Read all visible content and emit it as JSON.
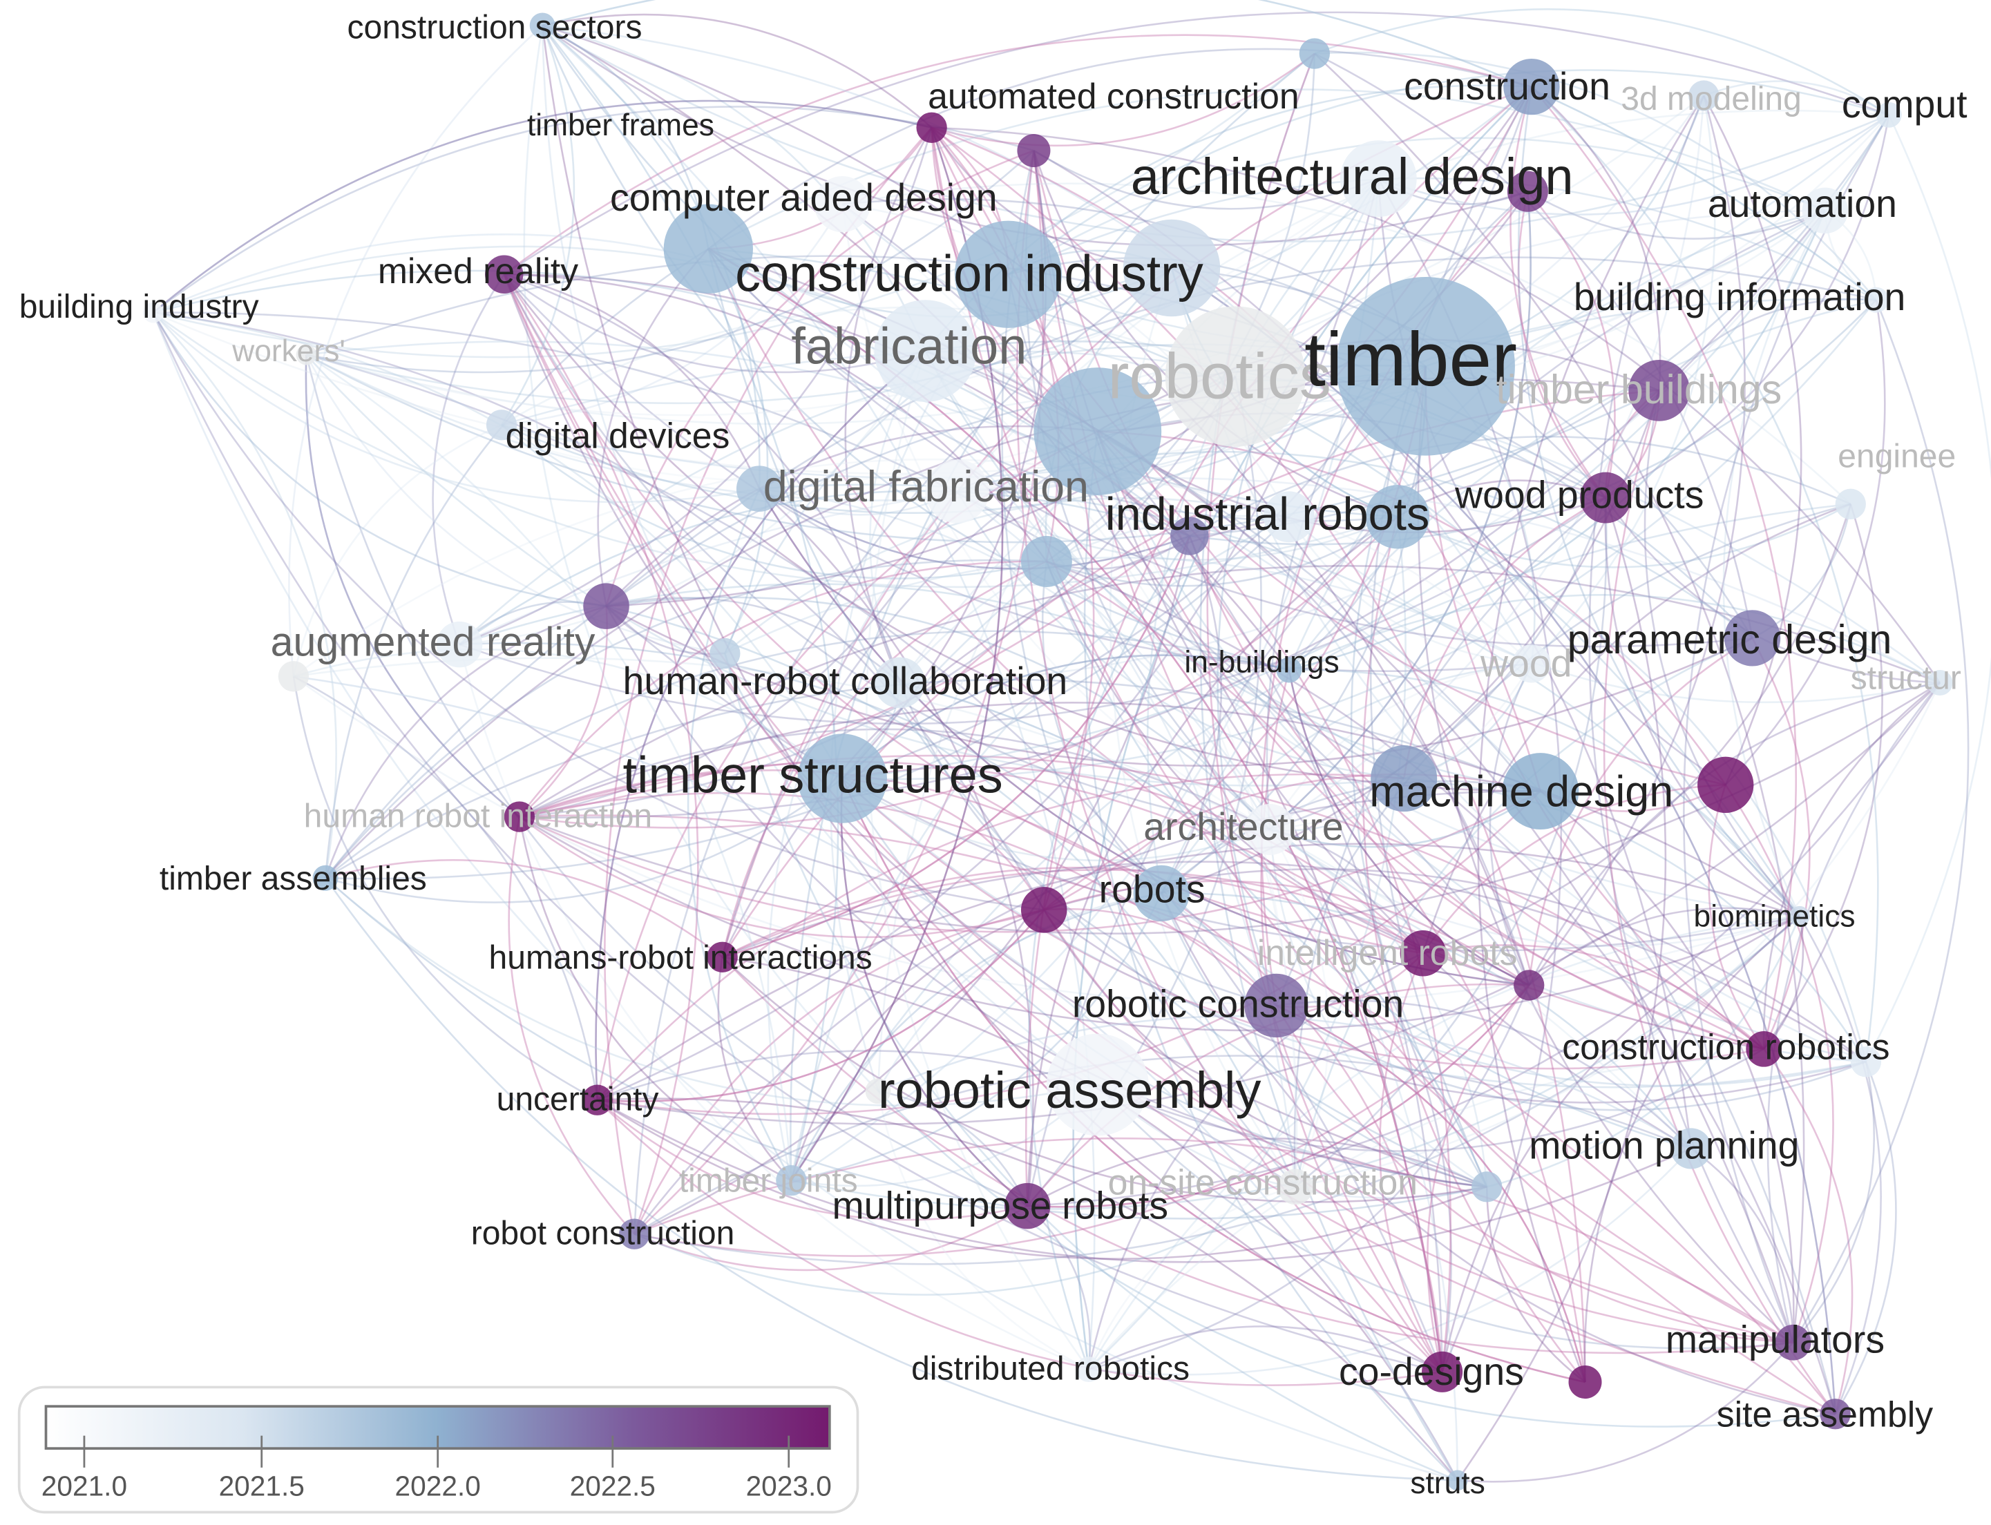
{
  "visualization": {
    "type": "keyword co-occurrence overlay network",
    "color_by": "average publication year",
    "nodes": [
      {
        "label": "construction sectors",
        "year": 2021.8
      },
      {
        "label": "automated construction",
        "year": 2022.7
      },
      {
        "label": "timber frames",
        "year": 2023.0
      },
      {
        "label": "construction",
        "year": 2022.1
      },
      {
        "label": "3d modeling",
        "year": 2021.6
      },
      {
        "label": "comput",
        "year": 2021.5
      },
      {
        "label": "architectural design",
        "year": 2022.7
      },
      {
        "label": "",
        "year": 2021.3
      },
      {
        "label": "automation",
        "year": 2021.3
      },
      {
        "label": "computer aided design",
        "year": 2021.9
      },
      {
        "label": "",
        "year": 2021.2
      },
      {
        "label": "mixed reality",
        "year": 2022.8
      },
      {
        "label": "construction industry",
        "year": 2021.9
      },
      {
        "label": "",
        "year": 2021.6
      },
      {
        "label": "building industry",
        "year": 2021.2
      },
      {
        "label": "building information",
        "year": 2021.4
      },
      {
        "label": "workers'",
        "year": 2021.1
      },
      {
        "label": "fabrication",
        "year": 2021.4
      },
      {
        "label": "robotics",
        "year": 2021.1
      },
      {
        "label": "timber",
        "year": 2021.9
      },
      {
        "label": "timber buildings",
        "year": 2022.6
      },
      {
        "label": "digital devices",
        "year": 2021.6
      },
      {
        "label": "",
        "year": 2021.9
      },
      {
        "label": "enginee",
        "year": 2021.5
      },
      {
        "label": "digital fabrication",
        "year": 2021.8
      },
      {
        "label": "",
        "year": 2021.2
      },
      {
        "label": "industrial robots",
        "year": 2022.3
      },
      {
        "label": "",
        "year": 2021.4
      },
      {
        "label": "",
        "year": 2021.9
      },
      {
        "label": "wood products",
        "year": 2022.8
      },
      {
        "label": "",
        "year": 2021.9
      },
      {
        "label": "",
        "year": 2022.5
      },
      {
        "label": "augmented reality",
        "year": 2021.3
      },
      {
        "label": "",
        "year": 2021.0
      },
      {
        "label": "",
        "year": 2021.7
      },
      {
        "label": "human-robot collaboration",
        "year": 2021.5
      },
      {
        "label": "in-buildings",
        "year": 2021.9
      },
      {
        "label": "wood",
        "year": 2021.3
      },
      {
        "label": "parametric design",
        "year": 2022.3
      },
      {
        "label": "structur",
        "year": 2021.5
      },
      {
        "label": "timber structures",
        "year": 2021.9
      },
      {
        "label": "machine design",
        "year": 2022.0
      },
      {
        "label": "",
        "year": 2022.1
      },
      {
        "label": "",
        "year": 2023.0
      },
      {
        "label": "human robot interaction",
        "year": 2023.0
      },
      {
        "label": "architecture",
        "year": 2021.2
      },
      {
        "label": "timber assemblies",
        "year": 2021.9
      },
      {
        "label": "robots",
        "year": 2021.9
      },
      {
        "label": "",
        "year": 2023.0
      },
      {
        "label": "biomimetics",
        "year": 2021.6
      },
      {
        "label": "humans-robot interactions",
        "year": 2023.0
      },
      {
        "label": "intelligent robots",
        "year": 2023.0
      },
      {
        "label": "",
        "year": 2022.8
      },
      {
        "label": "robotic construction",
        "year": 2022.4
      },
      {
        "label": "construction robotics",
        "year": 2023.0
      },
      {
        "label": "",
        "year": 2021.4
      },
      {
        "label": "robotic assembly",
        "year": 2021.2
      },
      {
        "label": "",
        "year": 2021.1
      },
      {
        "label": "uncertainty",
        "year": 2023.0
      },
      {
        "label": "motion planning",
        "year": 2021.7
      },
      {
        "label": "timber joints",
        "year": 2021.8
      },
      {
        "label": "on-site construction",
        "year": 2021.1
      },
      {
        "label": "",
        "year": 2021.8
      },
      {
        "label": "multipurpose robots",
        "year": 2022.8
      },
      {
        "label": "robot construction",
        "year": 2022.3
      },
      {
        "label": "distributed robotics",
        "year": 2021.3
      },
      {
        "label": "co-designs",
        "year": 2023.0
      },
      {
        "label": "",
        "year": 2023.0
      },
      {
        "label": "manipulators",
        "year": 2022.6
      },
      {
        "label": "site assembly",
        "year": 2022.5
      },
      {
        "label": "struts",
        "year": 2021.8
      },
      {
        "label": "",
        "year": 2021.9
      }
    ]
  },
  "legend": {
    "ticks": [
      "2021.0",
      "2021.5",
      "2022.0",
      "2022.5",
      "2023.0"
    ],
    "range": [
      2021.0,
      2023.0
    ],
    "colors": [
      "#ffffff",
      "#dbe6f1",
      "#8fb1d0",
      "#7c5a9c",
      "#741a6e"
    ]
  }
}
